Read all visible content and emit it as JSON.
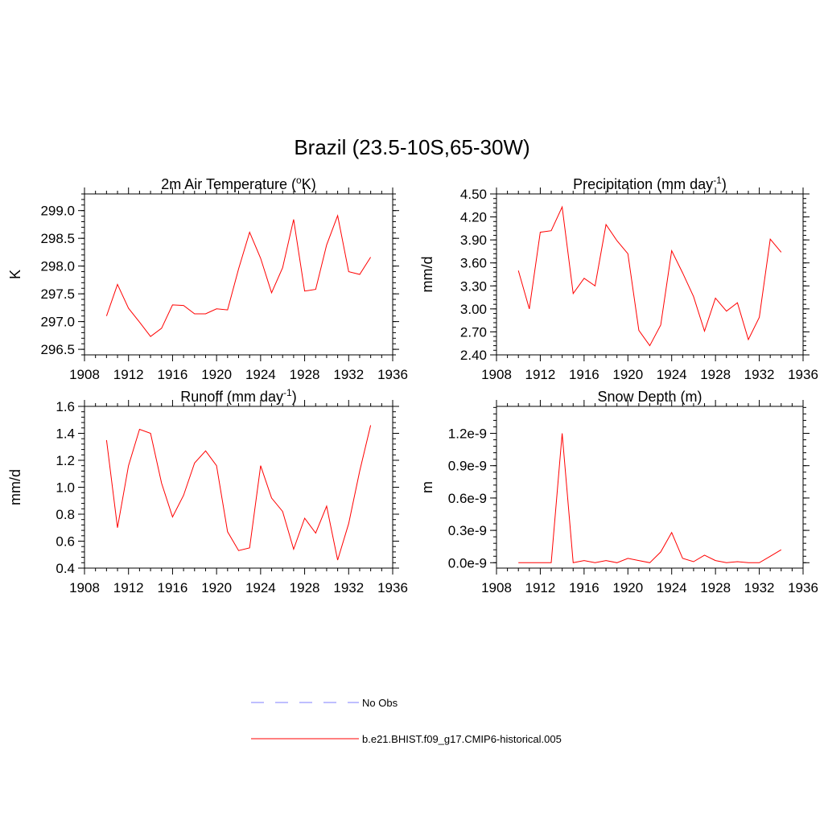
{
  "title": "Brazil (23.5-10S,65-30W)",
  "colors": {
    "model": "#ff0000",
    "obs": "#9999ff",
    "axis": "#000000"
  },
  "legend": {
    "obs_label": "No Obs",
    "model_label": "b.e21.BHIST.f09_g17.CMIP6-historical.005"
  },
  "chart_data": [
    {
      "type": "line",
      "title": "2m Air Temperature (",
      "title_sup": "o",
      "title_after": "K)",
      "ylabel": "K",
      "xlim": [
        1908,
        1936
      ],
      "xticks": [
        1908,
        1912,
        1916,
        1920,
        1924,
        1928,
        1932,
        1936
      ],
      "ylim": [
        296.4,
        299.3
      ],
      "yticks": [
        296.5,
        297.0,
        297.5,
        298.0,
        298.5,
        299.0
      ],
      "ytick_labels": [
        "296.5",
        "297.0",
        "297.5",
        "298.0",
        "298.5",
        "299.0"
      ],
      "x": [
        1910,
        1911,
        1912,
        1913,
        1914,
        1915,
        1916,
        1917,
        1918,
        1919,
        1920,
        1921,
        1922,
        1923,
        1924,
        1925,
        1926,
        1927,
        1928,
        1929,
        1930,
        1931,
        1932,
        1933,
        1934
      ],
      "series": [
        {
          "values": [
            297.1,
            297.67,
            297.24,
            296.99,
            296.73,
            296.88,
            297.3,
            297.29,
            297.14,
            297.14,
            297.23,
            297.21,
            297.95,
            298.61,
            298.14,
            297.52,
            297.97,
            298.84,
            297.55,
            297.58,
            298.38,
            298.91,
            297.9,
            297.85,
            298.16
          ]
        }
      ]
    },
    {
      "type": "line",
      "title": "Precipitation (mm day",
      "title_sup": "-1",
      "title_after": ")",
      "ylabel": "mm/d",
      "xlim": [
        1908,
        1936
      ],
      "xticks": [
        1908,
        1912,
        1916,
        1920,
        1924,
        1928,
        1932,
        1936
      ],
      "ylim": [
        2.4,
        4.5
      ],
      "yticks": [
        2.4,
        2.7,
        3.0,
        3.3,
        3.6,
        3.9,
        4.2,
        4.5
      ],
      "ytick_labels": [
        "2.40",
        "2.70",
        "3.00",
        "3.30",
        "3.60",
        "3.90",
        "4.20",
        "4.50"
      ],
      "x": [
        1910,
        1911,
        1912,
        1913,
        1914,
        1915,
        1916,
        1917,
        1918,
        1919,
        1920,
        1921,
        1922,
        1923,
        1924,
        1925,
        1926,
        1927,
        1928,
        1929,
        1930,
        1931,
        1932,
        1933,
        1934
      ],
      "series": [
        {
          "values": [
            3.5,
            3.0,
            4.0,
            4.02,
            4.33,
            3.2,
            3.4,
            3.3,
            4.1,
            3.89,
            3.72,
            2.72,
            2.52,
            2.79,
            3.76,
            3.47,
            3.16,
            2.71,
            3.14,
            2.97,
            3.08,
            2.6,
            2.89,
            3.91,
            3.74
          ]
        }
      ]
    },
    {
      "type": "line",
      "title": "Runoff (mm day",
      "title_sup": "-1",
      "title_after": ")",
      "ylabel": "mm/d",
      "xlim": [
        1908,
        1936
      ],
      "xticks": [
        1908,
        1912,
        1916,
        1920,
        1924,
        1928,
        1932,
        1936
      ],
      "ylim": [
        0.4,
        1.6
      ],
      "yticks": [
        0.4,
        0.6,
        0.8,
        1.0,
        1.2,
        1.4,
        1.6
      ],
      "ytick_labels": [
        "0.4",
        "0.6",
        "0.8",
        "1.0",
        "1.2",
        "1.4",
        "1.6"
      ],
      "x": [
        1910,
        1911,
        1912,
        1913,
        1914,
        1915,
        1916,
        1917,
        1918,
        1919,
        1920,
        1921,
        1922,
        1923,
        1924,
        1925,
        1926,
        1927,
        1928,
        1929,
        1930,
        1931,
        1932,
        1933,
        1934
      ],
      "series": [
        {
          "values": [
            1.35,
            0.7,
            1.16,
            1.43,
            1.4,
            1.03,
            0.78,
            0.94,
            1.18,
            1.27,
            1.16,
            0.67,
            0.53,
            0.55,
            1.16,
            0.92,
            0.82,
            0.54,
            0.77,
            0.66,
            0.86,
            0.46,
            0.73,
            1.12,
            1.46
          ]
        }
      ]
    },
    {
      "type": "line",
      "title": "Snow Depth (m)",
      "title_sup": "",
      "title_after": "",
      "ylabel": "m",
      "xlim": [
        1908,
        1936
      ],
      "xticks": [
        1908,
        1912,
        1916,
        1920,
        1924,
        1928,
        1932,
        1936
      ],
      "ylim": [
        -5e-11,
        1.45e-09
      ],
      "yticks": [
        0.0,
        3e-10,
        6e-10,
        9e-10,
        1.2e-09
      ],
      "ytick_labels": [
        "0.0e-9",
        "0.3e-9",
        "0.6e-9",
        "0.9e-9",
        "1.2e-9"
      ],
      "x": [
        1910,
        1911,
        1912,
        1913,
        1914,
        1915,
        1916,
        1917,
        1918,
        1919,
        1920,
        1921,
        1922,
        1923,
        1924,
        1925,
        1926,
        1927,
        1928,
        1929,
        1930,
        1931,
        1932,
        1933,
        1934
      ],
      "series": [
        {
          "values": [
            0.0,
            0.0,
            0.0,
            0.0,
            1.2e-09,
            0.0,
            2e-11,
            0.0,
            2e-11,
            0.0,
            4e-11,
            2e-11,
            0.0,
            1e-10,
            2.8e-10,
            4e-11,
            1e-11,
            7e-11,
            2e-11,
            0.0,
            1e-11,
            0.0,
            0.0,
            6e-11,
            1.2e-10
          ]
        }
      ]
    }
  ]
}
